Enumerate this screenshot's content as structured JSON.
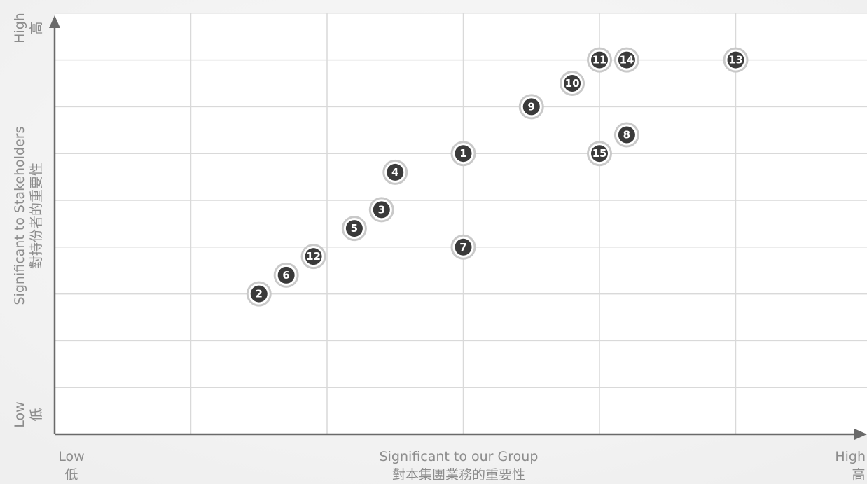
{
  "chart_data": {
    "type": "scatter",
    "xlabel": "Significant to our Group",
    "xlabel_zh": "對本集團業務的重要性",
    "ylabel": "Significant to Stakeholders",
    "ylabel_zh": "對持份者的重要性",
    "x_low": "Low",
    "x_low_zh": "低",
    "x_high": "High",
    "x_high_zh": "高",
    "y_low": "Low",
    "y_low_zh": "低",
    "y_high": "High",
    "y_high_zh": "高",
    "xlim": [
      0,
      6
    ],
    "ylim": [
      0,
      9
    ],
    "grid": true,
    "points": [
      {
        "label": "1",
        "x": 3.0,
        "y": 6.0
      },
      {
        "label": "2",
        "x": 1.5,
        "y": 3.0
      },
      {
        "label": "3",
        "x": 2.4,
        "y": 4.8
      },
      {
        "label": "4",
        "x": 2.5,
        "y": 5.6
      },
      {
        "label": "5",
        "x": 2.2,
        "y": 4.4
      },
      {
        "label": "6",
        "x": 1.7,
        "y": 3.4
      },
      {
        "label": "7",
        "x": 3.0,
        "y": 4.0
      },
      {
        "label": "8",
        "x": 4.2,
        "y": 6.4
      },
      {
        "label": "9",
        "x": 3.5,
        "y": 7.0
      },
      {
        "label": "10",
        "x": 3.8,
        "y": 7.5
      },
      {
        "label": "11",
        "x": 4.0,
        "y": 8.0
      },
      {
        "label": "12",
        "x": 1.9,
        "y": 3.8
      },
      {
        "label": "13",
        "x": 5.0,
        "y": 8.0
      },
      {
        "label": "14",
        "x": 4.2,
        "y": 8.0
      },
      {
        "label": "15",
        "x": 4.0,
        "y": 6.0
      }
    ]
  }
}
